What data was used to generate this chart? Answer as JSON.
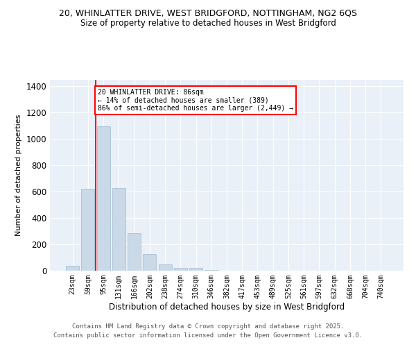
{
  "title1": "20, WHINLATTER DRIVE, WEST BRIDGFORD, NOTTINGHAM, NG2 6QS",
  "title2": "Size of property relative to detached houses in West Bridgford",
  "xlabel": "Distribution of detached houses by size in West Bridgford",
  "ylabel": "Number of detached properties",
  "categories": [
    "23sqm",
    "59sqm",
    "95sqm",
    "131sqm",
    "166sqm",
    "202sqm",
    "238sqm",
    "274sqm",
    "310sqm",
    "346sqm",
    "382sqm",
    "417sqm",
    "453sqm",
    "489sqm",
    "525sqm",
    "561sqm",
    "597sqm",
    "632sqm",
    "668sqm",
    "704sqm",
    "740sqm"
  ],
  "values": [
    35,
    620,
    1095,
    630,
    285,
    125,
    50,
    22,
    20,
    5,
    0,
    0,
    0,
    0,
    0,
    0,
    0,
    0,
    0,
    0,
    0
  ],
  "bar_color": "#c9d9e8",
  "bar_edge_color": "#a0b8cc",
  "vline_x": 1.5,
  "vline_color": "red",
  "annotation_text": "20 WHINLATTER DRIVE: 86sqm\n← 14% of detached houses are smaller (389)\n86% of semi-detached houses are larger (2,449) →",
  "annotation_box_color": "white",
  "annotation_box_edge_color": "red",
  "ylim": [
    0,
    1450
  ],
  "yticks": [
    0,
    200,
    400,
    600,
    800,
    1000,
    1200,
    1400
  ],
  "bg_color": "#eaf0f8",
  "grid_color": "white",
  "footer1": "Contains HM Land Registry data © Crown copyright and database right 2025.",
  "footer2": "Contains public sector information licensed under the Open Government Licence v3.0."
}
